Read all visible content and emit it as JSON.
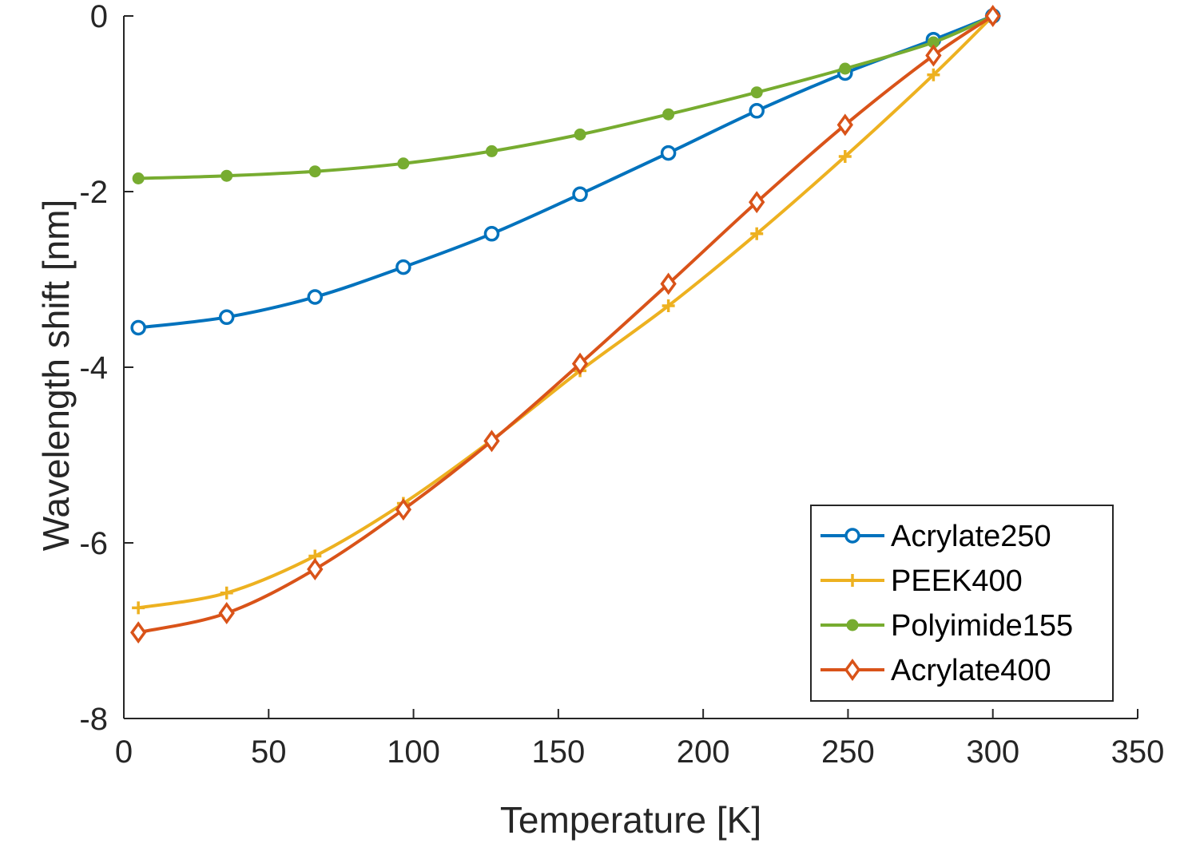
{
  "chart_data": {
    "type": "line",
    "title": "",
    "xlabel": "Temperature [K]",
    "ylabel": "Wavelength shift [nm]",
    "xlim": [
      0,
      350
    ],
    "ylim": [
      -8,
      0
    ],
    "xticks": [
      0,
      50,
      100,
      150,
      200,
      250,
      300,
      350
    ],
    "yticks": [
      -8,
      -6,
      -4,
      -2,
      0
    ],
    "xtick_labels": [
      "0",
      "50",
      "100",
      "150",
      "200",
      "250",
      "300",
      "350"
    ],
    "ytick_labels": [
      "-8",
      "-6",
      "-4",
      "-2",
      "0"
    ],
    "x": [
      5,
      35.5,
      66,
      96.5,
      127,
      157.5,
      188,
      218.5,
      249,
      279.5,
      300
    ],
    "legend_position": "bottom-right",
    "grid": false,
    "series": [
      {
        "name": "Acrylate250",
        "color": "#0072BD",
        "marker": "circle",
        "values": [
          -3.55,
          -3.43,
          -3.2,
          -2.86,
          -2.48,
          -2.03,
          -1.56,
          -1.08,
          -0.65,
          -0.27,
          0
        ]
      },
      {
        "name": "PEEK400",
        "color": "#EDB120",
        "marker": "plus",
        "values": [
          -6.74,
          -6.57,
          -6.15,
          -5.55,
          -4.83,
          -4.04,
          -3.3,
          -2.48,
          -1.6,
          -0.67,
          0
        ]
      },
      {
        "name": "Polyimide155",
        "color": "#77AC30",
        "marker": "dot",
        "values": [
          -1.85,
          -1.82,
          -1.77,
          -1.68,
          -1.54,
          -1.35,
          -1.12,
          -0.87,
          -0.6,
          -0.3,
          0
        ]
      },
      {
        "name": "Acrylate400",
        "color": "#D95319",
        "marker": "diamond",
        "values": [
          -7.02,
          -6.8,
          -6.3,
          -5.62,
          -4.84,
          -3.96,
          -3.05,
          -2.12,
          -1.24,
          -0.45,
          0
        ]
      }
    ]
  }
}
